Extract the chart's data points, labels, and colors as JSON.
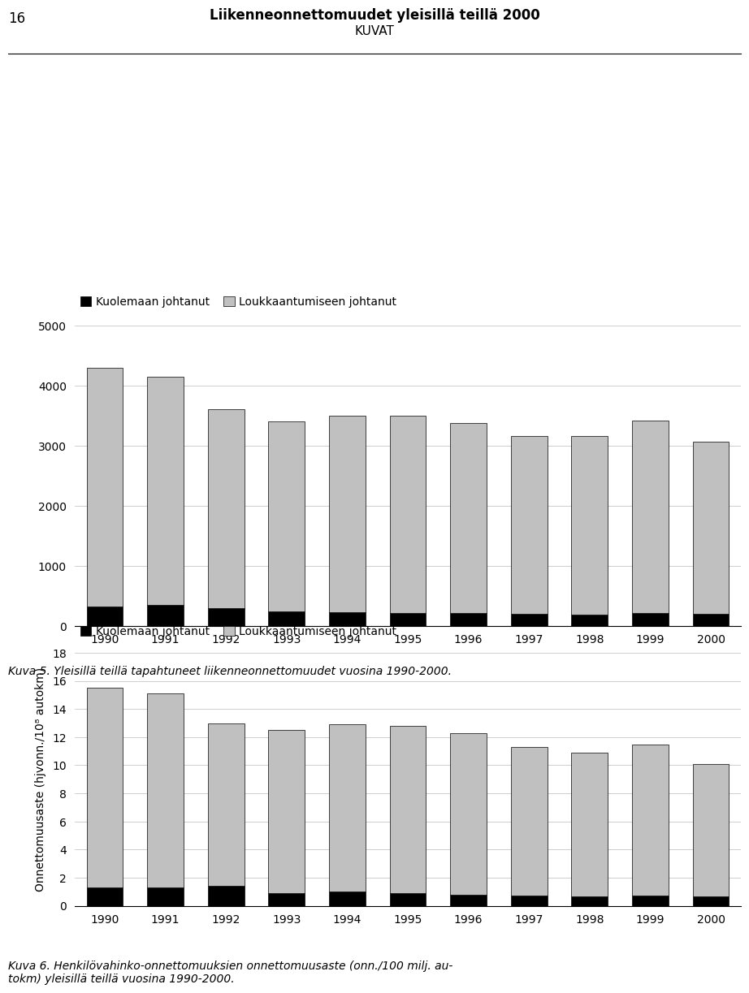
{
  "years": [
    1990,
    1991,
    1992,
    1993,
    1994,
    1995,
    1996,
    1997,
    1998,
    1999,
    2000
  ],
  "chart1": {
    "fatal": [
      320,
      350,
      300,
      240,
      230,
      220,
      210,
      200,
      195,
      220,
      200
    ],
    "injury": [
      3980,
      3800,
      3300,
      3160,
      3270,
      3280,
      3170,
      2960,
      2965,
      3200,
      2870
    ],
    "ylim": [
      0,
      5000
    ],
    "yticks": [
      0,
      1000,
      2000,
      3000,
      4000,
      5000
    ],
    "caption": "Kuva 5. Yleisillä teillä tapahtuneet liikenneonnettomuudet vuosina 1990-2000."
  },
  "chart2": {
    "fatal": [
      1.3,
      1.3,
      1.4,
      0.9,
      1.0,
      0.9,
      0.8,
      0.7,
      0.65,
      0.75,
      0.65
    ],
    "injury": [
      14.2,
      13.8,
      11.6,
      11.6,
      11.9,
      11.9,
      11.5,
      10.6,
      10.25,
      10.75,
      9.45
    ],
    "ylim": [
      0,
      18
    ],
    "yticks": [
      0,
      2,
      4,
      6,
      8,
      10,
      12,
      14,
      16,
      18
    ],
    "ylabel": "Onnettomuusaste (hjvonn./10⁸ autokm)",
    "caption": "Kuva 6. Henkilövahinko-onnettomuuksien onnettomuusaste (onn./100 milj. au-\ntokm) yleisillä teillä vuosina 1990-2000."
  },
  "legend_fatal": "Kuolemaan johtanut",
  "legend_injury": "Loukkaantumiseen johtanut",
  "color_fatal": "#000000",
  "color_injury": "#c0c0c0",
  "page_number": "16",
  "page_title": "Liikenneonnettomuudet yleisillä teillä 2000",
  "page_subtitle": "KUVAT",
  "bar_width": 0.6,
  "bg_color": "#ffffff",
  "grid_color": "#bbbbbb",
  "bar_edge_color": "#000000"
}
